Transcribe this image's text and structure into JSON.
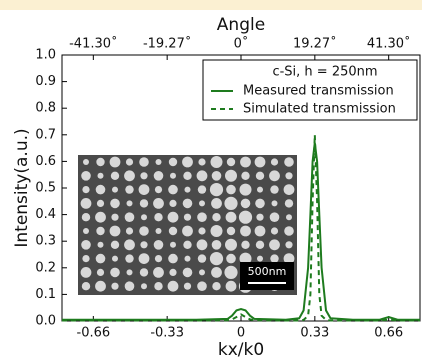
{
  "chart_data": {
    "type": "line",
    "top_axis_label": "Angle",
    "x_label": "kx/k0",
    "y_label": "Intensity(a.u.)",
    "legend_title": "c-Si, h = 250nm",
    "legend_position": "upper right",
    "inset_scale_label": "500nm",
    "xlim": [
      -0.8,
      0.8
    ],
    "ylim": [
      0,
      1
    ],
    "xticks": [
      -0.66,
      -0.33,
      0,
      0.33,
      0.66
    ],
    "x2ticks": [
      {
        "value": -0.66,
        "label": "-41.30˚"
      },
      {
        "value": -0.33,
        "label": "-19.27˚"
      },
      {
        "value": 0,
        "label": "0˚"
      },
      {
        "value": 0.33,
        "label": "19.27˚"
      },
      {
        "value": 0.66,
        "label": "41.30˚"
      }
    ],
    "yticks": [
      {
        "value": 0,
        "label": "0.0"
      },
      0.1,
      0.2,
      0.3,
      0.4,
      0.5,
      0.6,
      0.7,
      0.8,
      0.9,
      {
        "value": 1,
        "label": "1.0"
      }
    ],
    "x": [
      -0.8,
      -0.6,
      -0.4,
      -0.2,
      -0.06,
      -0.04,
      -0.02,
      0,
      0.02,
      0.04,
      0.06,
      0.2,
      0.26,
      0.28,
      0.3,
      0.31,
      0.32,
      0.33,
      0.34,
      0.35,
      0.36,
      0.38,
      0.4,
      0.5,
      0.62,
      0.66,
      0.7,
      0.8
    ],
    "series": [
      {
        "name": "Measured transmission",
        "color": "#1e7b1e",
        "dash": false,
        "values": [
          0.005,
          0.005,
          0.005,
          0.005,
          0.008,
          0.02,
          0.04,
          0.045,
          0.04,
          0.02,
          0.008,
          0.005,
          0.01,
          0.04,
          0.2,
          0.4,
          0.6,
          0.67,
          0.6,
          0.4,
          0.2,
          0.04,
          0.01,
          0.005,
          0.005,
          0.015,
          0.005,
          0.005
        ]
      },
      {
        "name": "Simulated transmission",
        "color": "#1e7b1e",
        "dash": true,
        "values": [
          0.002,
          0.002,
          0.002,
          0.002,
          0.003,
          0.006,
          0.015,
          0.025,
          0.015,
          0.006,
          0.003,
          0.002,
          0.002,
          0.004,
          0.02,
          0.1,
          0.45,
          0.7,
          0.45,
          0.1,
          0.02,
          0.004,
          0.002,
          0.002,
          0.002,
          0.005,
          0.002,
          0.002
        ]
      }
    ]
  }
}
